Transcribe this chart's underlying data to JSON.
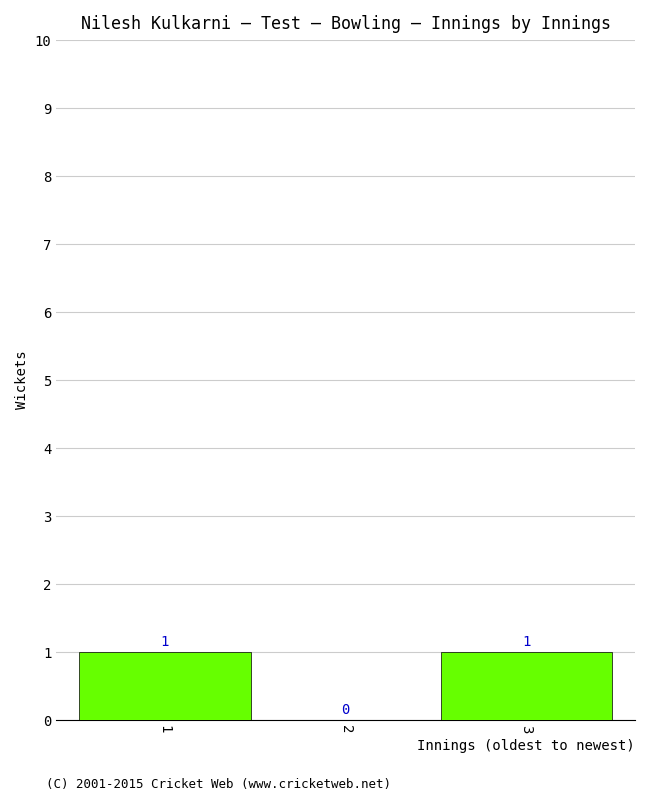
{
  "title": "Nilesh Kulkarni – Test – Bowling – Innings by Innings",
  "xlabel": "Innings (oldest to newest)",
  "ylabel": "Wickets",
  "categories": [
    1,
    2,
    3
  ],
  "values": [
    1,
    0,
    1
  ],
  "bar_color": "#66ff00",
  "bar_edge_color": "#000000",
  "ylim": [
    0,
    10
  ],
  "yticks": [
    0,
    1,
    2,
    3,
    4,
    5,
    6,
    7,
    8,
    9,
    10
  ],
  "xticks": [
    1,
    2,
    3
  ],
  "annotation_color": "#0000cc",
  "background_color": "#ffffff",
  "grid_color": "#cccccc",
  "footer": "(C) 2001-2015 Cricket Web (www.cricketweb.net)",
  "title_fontsize": 12,
  "axis_label_fontsize": 10,
  "tick_fontsize": 10,
  "annotation_fontsize": 10,
  "footer_fontsize": 9,
  "bar_width": 0.95
}
